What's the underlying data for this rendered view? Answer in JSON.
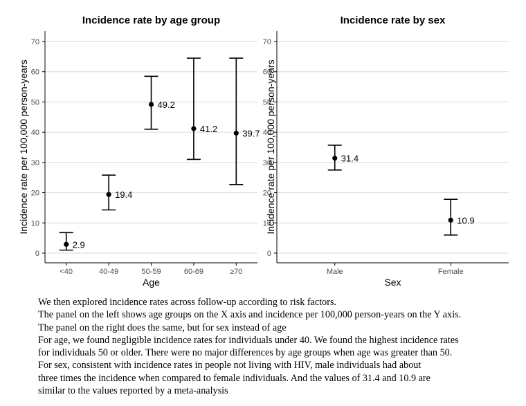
{
  "chart_data": [
    {
      "type": "scatter",
      "title": "Incidence rate by age group",
      "xlabel": "Age",
      "ylabel": "Incidence rate per 100,000 person-years",
      "categories": [
        "<40",
        "40-49",
        "50-59",
        "60-69",
        "≥70"
      ],
      "values": [
        2.9,
        19.4,
        49.2,
        41.2,
        39.7
      ],
      "lower": [
        1.0,
        14.3,
        41.0,
        31.0,
        22.7
      ],
      "upper": [
        6.8,
        25.8,
        58.5,
        64.5,
        64.5
      ],
      "value_labels": [
        "2.9",
        "19.4",
        "49.2",
        "41.2",
        "39.7"
      ],
      "ylim": [
        0,
        70
      ],
      "yticks": [
        "0",
        "10",
        "20",
        "30",
        "40",
        "50",
        "60",
        "70"
      ],
      "grid": true,
      "error_bars": true
    },
    {
      "type": "scatter",
      "title": "Incidence rate by sex",
      "xlabel": "Sex",
      "ylabel": "Incidence rate per 100,000 person-years",
      "categories": [
        "Male",
        "Female"
      ],
      "values": [
        31.4,
        10.9
      ],
      "lower": [
        27.5,
        6.0
      ],
      "upper": [
        35.7,
        17.8
      ],
      "value_labels": [
        "31.4",
        "10.9"
      ],
      "ylim": [
        0,
        70
      ],
      "yticks": [
        "0",
        "10",
        "20",
        "30",
        "40",
        "50",
        "60",
        "70"
      ],
      "grid": true,
      "error_bars": true
    }
  ],
  "caption": [
    "We then explored incidence rates across follow-up according to risk factors.",
    "The panel on the left shows age groups on the X axis and incidence per 100,000 person-years  on the Y axis.",
    "The panel on the right does the same, but for sex instead of age",
    "For age, we found negligible incidence rates for individuals under 40. We found the highest incidence rates",
    "for individuals 50 or older. There were no major differences by age groups when age was greater than 50.",
    "For sex, consistent with incidence rates in people not living with HIV, male individuals had about",
    "three times the incidence when compared to female individuals. And the values of 31.4 and 10.9 are",
    "similar to the values reported by a meta-analysis"
  ]
}
